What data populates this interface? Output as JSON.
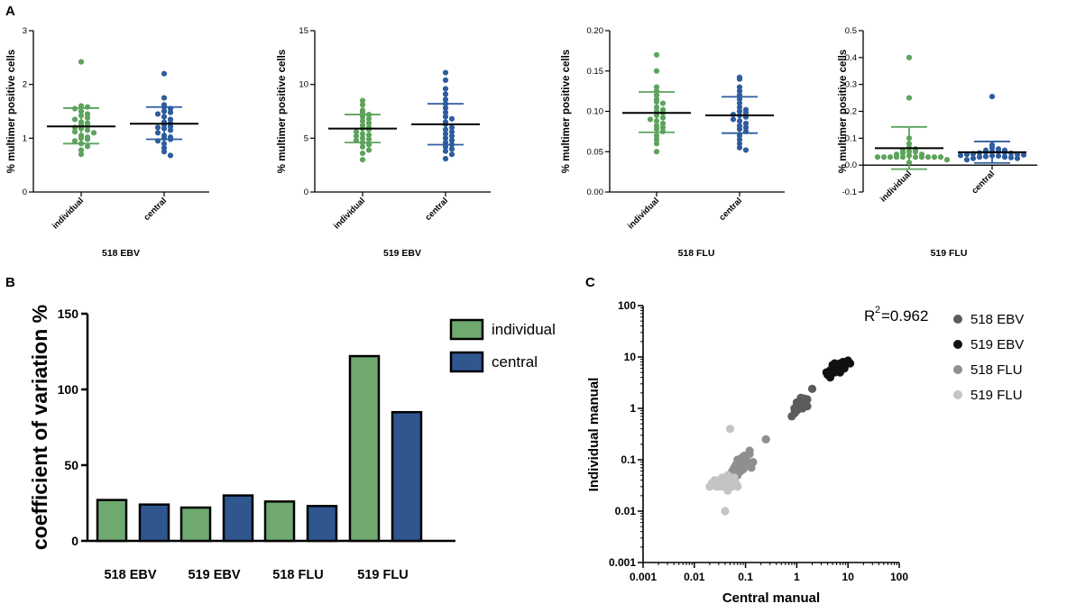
{
  "panel_labels": {
    "a": "A",
    "b": "B",
    "c": "C"
  },
  "colors": {
    "individual": "#5da35d",
    "central": "#2e5d9e",
    "bar_individual": "#6fa96f",
    "bar_central": "#2f568f"
  },
  "chart_data": [
    {
      "id": "a1",
      "type": "scatter",
      "title": "518 EBV",
      "ylabel": "% multimer positive cells",
      "categories": [
        "individual",
        "central"
      ],
      "ylim": [
        0,
        3
      ],
      "yticks": [
        0,
        1,
        2,
        3
      ],
      "ytick_labels": [
        "0",
        "1",
        "2",
        "3"
      ],
      "series": [
        {
          "name": "individual",
          "mean": 1.22,
          "sd_low": 0.9,
          "sd_high": 1.56,
          "values": [
            2.42,
            1.6,
            1.58,
            1.55,
            1.5,
            1.45,
            1.42,
            1.38,
            1.35,
            1.3,
            1.28,
            1.25,
            1.22,
            1.2,
            1.18,
            1.15,
            1.12,
            1.1,
            1.05,
            1.02,
            1.0,
            0.98,
            0.95,
            0.9,
            0.85,
            0.78,
            0.7
          ]
        },
        {
          "name": "central",
          "mean": 1.27,
          "sd_low": 0.98,
          "sd_high": 1.58,
          "values": [
            2.2,
            1.75,
            1.62,
            1.58,
            1.55,
            1.5,
            1.48,
            1.45,
            1.4,
            1.35,
            1.3,
            1.28,
            1.25,
            1.22,
            1.2,
            1.18,
            1.15,
            1.1,
            1.05,
            1.02,
            1.0,
            0.98,
            0.95,
            0.9,
            0.82,
            0.75,
            0.68
          ]
        }
      ]
    },
    {
      "id": "a2",
      "type": "scatter",
      "title": "519 EBV",
      "ylabel": "% multimer positive cells",
      "categories": [
        "individual",
        "central"
      ],
      "ylim": [
        0,
        15
      ],
      "yticks": [
        0,
        5,
        10,
        15
      ],
      "ytick_labels": [
        "0",
        "5",
        "10",
        "15"
      ],
      "series": [
        {
          "name": "individual",
          "mean": 5.9,
          "sd_low": 4.6,
          "sd_high": 7.2,
          "values": [
            8.5,
            8.1,
            7.6,
            7.4,
            7.2,
            7.0,
            6.8,
            6.6,
            6.4,
            6.2,
            6.0,
            5.9,
            5.8,
            5.6,
            5.4,
            5.3,
            5.2,
            5.0,
            4.9,
            4.8,
            4.6,
            4.4,
            4.2,
            3.9,
            3.6,
            3.0
          ]
        },
        {
          "name": "central",
          "mean": 6.3,
          "sd_low": 4.4,
          "sd_high": 8.2,
          "values": [
            11.1,
            10.4,
            9.6,
            9.1,
            8.6,
            8.2,
            7.8,
            7.4,
            7.0,
            6.8,
            6.5,
            6.3,
            6.0,
            5.8,
            5.6,
            5.4,
            5.2,
            5.0,
            4.8,
            4.6,
            4.4,
            4.2,
            4.0,
            3.8,
            3.5,
            3.1
          ]
        }
      ]
    },
    {
      "id": "a3",
      "type": "scatter",
      "title": "518 FLU",
      "ylabel": "% multimer positive cells",
      "categories": [
        "individual",
        "central"
      ],
      "ylim": [
        0,
        0.2
      ],
      "yticks": [
        0,
        0.05,
        0.1,
        0.15,
        0.2
      ],
      "ytick_labels": [
        "0.00",
        "0.05",
        "0.10",
        "0.15",
        "0.20"
      ],
      "series": [
        {
          "name": "individual",
          "mean": 0.098,
          "sd_low": 0.074,
          "sd_high": 0.124,
          "values": [
            0.17,
            0.15,
            0.13,
            0.125,
            0.12,
            0.115,
            0.112,
            0.11,
            0.105,
            0.102,
            0.1,
            0.098,
            0.095,
            0.092,
            0.09,
            0.088,
            0.085,
            0.082,
            0.08,
            0.078,
            0.075,
            0.07,
            0.065,
            0.06,
            0.05
          ]
        },
        {
          "name": "central",
          "mean": 0.095,
          "sd_low": 0.073,
          "sd_high": 0.118,
          "values": [
            0.142,
            0.14,
            0.13,
            0.125,
            0.12,
            0.115,
            0.11,
            0.105,
            0.102,
            0.1,
            0.098,
            0.096,
            0.095,
            0.093,
            0.09,
            0.088,
            0.085,
            0.082,
            0.08,
            0.078,
            0.075,
            0.07,
            0.065,
            0.06,
            0.055,
            0.052
          ]
        }
      ]
    },
    {
      "id": "a4",
      "type": "scatter",
      "title": "519 FLU",
      "ylabel": "% multimer positive cells",
      "categories": [
        "individual",
        "central"
      ],
      "ylim": [
        -0.1,
        0.5
      ],
      "yticks": [
        -0.1,
        0,
        0.1,
        0.2,
        0.3,
        0.4,
        0.5
      ],
      "ytick_labels": [
        "-0.1",
        "0.0",
        "0.1",
        "0.2",
        "0.3",
        "0.4",
        "0.5"
      ],
      "series": [
        {
          "name": "individual",
          "mean": 0.063,
          "sd_low": -0.015,
          "sd_high": 0.142,
          "values": [
            0.4,
            0.25,
            0.1,
            0.08,
            0.065,
            0.06,
            0.055,
            0.05,
            0.05,
            0.045,
            0.04,
            0.04,
            0.035,
            0.03,
            0.03,
            0.03,
            0.03,
            0.03,
            0.03,
            0.03,
            0.03,
            0.03,
            0.03,
            0.02,
            0.01
          ]
        },
        {
          "name": "central",
          "mean": 0.048,
          "sd_low": 0.008,
          "sd_high": 0.088,
          "values": [
            0.255,
            0.075,
            0.065,
            0.06,
            0.055,
            0.055,
            0.05,
            0.05,
            0.048,
            0.046,
            0.045,
            0.044,
            0.042,
            0.04,
            0.04,
            0.038,
            0.036,
            0.035,
            0.034,
            0.032,
            0.03,
            0.03,
            0.028,
            0.025,
            0.025,
            0.02
          ]
        }
      ]
    },
    {
      "id": "b",
      "type": "bar",
      "ylabel": "coefficient of variation %",
      "categories": [
        "518 EBV",
        "519 EBV",
        "518 FLU",
        "519 FLU"
      ],
      "ylim": [
        0,
        150
      ],
      "yticks": [
        0,
        50,
        100,
        150
      ],
      "series": [
        {
          "name": "individual",
          "values": [
            27,
            22,
            26,
            122
          ]
        },
        {
          "name": "central",
          "values": [
            24,
            30,
            23,
            85
          ]
        }
      ],
      "legend": "top-right"
    },
    {
      "id": "c",
      "type": "scatter",
      "scale": "log",
      "xlabel": "Central manual",
      "ylabel": "Individual manual",
      "xlim": [
        0.001,
        100
      ],
      "ylim": [
        0.001,
        100
      ],
      "ticks": [
        0.001,
        0.01,
        0.1,
        1,
        10,
        100
      ],
      "tick_labels": [
        "0.001",
        "0.01",
        "0.1",
        "1",
        "10",
        "100"
      ],
      "annotation": {
        "r": "R",
        "sup": "2",
        "value": "=0.962"
      },
      "legend": "right",
      "series": [
        {
          "name": "518 EBV",
          "color": "#5c5c5c",
          "points": [
            [
              0.8,
              0.7
            ],
            [
              0.9,
              0.8
            ],
            [
              1.0,
              0.9
            ],
            [
              1.1,
              1.0
            ],
            [
              1.2,
              1.1
            ],
            [
              1.3,
              1.2
            ],
            [
              1.4,
              1.3
            ],
            [
              1.5,
              1.4
            ],
            [
              1.6,
              1.5
            ],
            [
              1.2,
              1.6
            ],
            [
              2.0,
              2.4
            ],
            [
              1.3,
              1.0
            ],
            [
              1.1,
              1.2
            ],
            [
              0.9,
              1.0
            ],
            [
              1.5,
              1.25
            ],
            [
              1.4,
              1.55
            ],
            [
              1.0,
              1.3
            ],
            [
              1.6,
              1.1
            ]
          ]
        },
        {
          "name": "519 EBV",
          "color": "#111111",
          "points": [
            [
              4.0,
              4.5
            ],
            [
              4.5,
              5.5
            ],
            [
              5.0,
              6.0
            ],
            [
              5.5,
              5.0
            ],
            [
              6.0,
              6.5
            ],
            [
              6.5,
              7.0
            ],
            [
              7.0,
              7.5
            ],
            [
              8.0,
              8.0
            ],
            [
              9.0,
              7.5
            ],
            [
              10.0,
              8.5
            ],
            [
              11.0,
              7.5
            ],
            [
              5.0,
              7.0
            ],
            [
              6.0,
              5.5
            ],
            [
              7.5,
              6.5
            ],
            [
              8.5,
              6.0
            ],
            [
              4.5,
              4.0
            ],
            [
              5.5,
              7.5
            ],
            [
              9.5,
              8.0
            ],
            [
              3.8,
              5.0
            ],
            [
              7.0,
              5.0
            ]
          ]
        },
        {
          "name": "518 FLU",
          "color": "#8f8f8f",
          "points": [
            [
              0.05,
              0.05
            ],
            [
              0.055,
              0.06
            ],
            [
              0.06,
              0.07
            ],
            [
              0.065,
              0.08
            ],
            [
              0.07,
              0.1
            ],
            [
              0.075,
              0.09
            ],
            [
              0.08,
              0.085
            ],
            [
              0.085,
              0.11
            ],
            [
              0.09,
              0.1
            ],
            [
              0.095,
              0.12
            ],
            [
              0.1,
              0.1
            ],
            [
              0.105,
              0.095
            ],
            [
              0.11,
              0.08
            ],
            [
              0.12,
              0.13
            ],
            [
              0.13,
              0.07
            ],
            [
              0.14,
              0.09
            ],
            [
              0.06,
              0.04
            ],
            [
              0.07,
              0.05
            ],
            [
              0.08,
              0.06
            ],
            [
              0.09,
              0.065
            ],
            [
              0.12,
              0.15
            ],
            [
              0.1,
              0.075
            ],
            [
              0.25,
              0.25
            ]
          ]
        },
        {
          "name": "519 FLU",
          "color": "#c4c4c4",
          "points": [
            [
              0.02,
              0.03
            ],
            [
              0.022,
              0.035
            ],
            [
              0.025,
              0.04
            ],
            [
              0.027,
              0.03
            ],
            [
              0.03,
              0.04
            ],
            [
              0.032,
              0.03
            ],
            [
              0.035,
              0.045
            ],
            [
              0.038,
              0.03
            ],
            [
              0.04,
              0.04
            ],
            [
              0.042,
              0.035
            ],
            [
              0.045,
              0.05
            ],
            [
              0.048,
              0.03
            ],
            [
              0.05,
              0.04
            ],
            [
              0.055,
              0.03
            ],
            [
              0.06,
              0.045
            ],
            [
              0.065,
              0.035
            ],
            [
              0.07,
              0.03
            ],
            [
              0.05,
              0.4
            ],
            [
              0.04,
              0.01
            ],
            [
              0.03,
              0.035
            ],
            [
              0.045,
              0.025
            ]
          ]
        }
      ]
    }
  ]
}
